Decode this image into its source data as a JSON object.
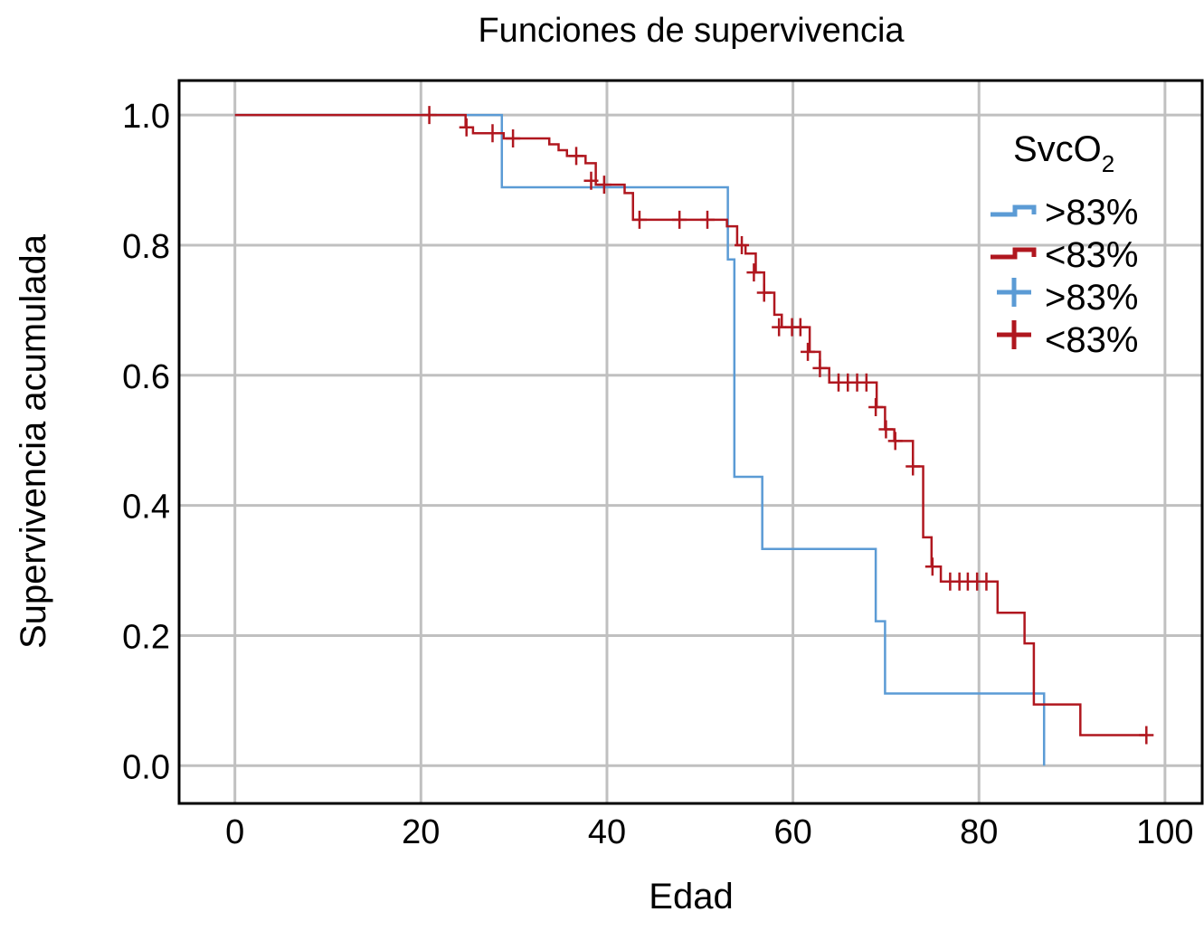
{
  "chart_data": {
    "type": "line",
    "subtype": "kaplan-meier-step",
    "title": "Funciones de supervivencia",
    "xlabel": "Edad",
    "ylabel": "Supervivencia acumulada",
    "xlim": [
      -6,
      104
    ],
    "ylim": [
      -0.058,
      1.053
    ],
    "xticks": [
      0,
      20,
      40,
      60,
      80,
      100
    ],
    "xtick_labels": [
      "0",
      "20",
      "40",
      "60",
      "80",
      "100"
    ],
    "yticks": [
      0,
      0.2,
      0.4,
      0.6,
      0.8,
      1.0
    ],
    "ytick_labels": [
      "0.0",
      "0.2",
      "0.4",
      "0.6",
      "0.8",
      "1.0"
    ],
    "grid": true,
    "legend": {
      "title": "SvcO",
      "title_sub": "2",
      "placement": "top-right",
      "entries": [
        {
          "label": ">83%",
          "kind": "line",
          "series": 0
        },
        {
          "label": "<83%",
          "kind": "line",
          "series": 1
        },
        {
          "label": ">83%",
          "kind": "censor",
          "series": 0
        },
        {
          "label": "<83%",
          "kind": "censor",
          "series": 1
        }
      ]
    },
    "series": [
      {
        "name": ">83%",
        "color": "#5b9bd5",
        "steps": [
          [
            0,
            1
          ],
          [
            28.7,
            0.889
          ],
          [
            53,
            0.778
          ],
          [
            53.7,
            0.444
          ],
          [
            56.7,
            0.333
          ],
          [
            68.9,
            0.222
          ],
          [
            69.9,
            0.111
          ],
          [
            87,
            0
          ]
        ],
        "end": 87,
        "censored": []
      },
      {
        "name": "<83%",
        "color": "#b0171f",
        "steps": [
          [
            0,
            1
          ],
          [
            24.8,
            0.981
          ],
          [
            25.6,
            0.972
          ],
          [
            28.9,
            0.964
          ],
          [
            33.8,
            0.955
          ],
          [
            34.8,
            0.946
          ],
          [
            35.7,
            0.937
          ],
          [
            37.7,
            0.926
          ],
          [
            38.8,
            0.893
          ],
          [
            41.9,
            0.88
          ],
          [
            42.8,
            0.839
          ],
          [
            52.9,
            0.829
          ],
          [
            54,
            0.8
          ],
          [
            54.9,
            0.787
          ],
          [
            56,
            0.758
          ],
          [
            56.9,
            0.727
          ],
          [
            58,
            0.693
          ],
          [
            58.8,
            0.674
          ],
          [
            61.8,
            0.636
          ],
          [
            62.9,
            0.611
          ],
          [
            63.9,
            0.589
          ],
          [
            69,
            0.551
          ],
          [
            69.9,
            0.517
          ],
          [
            70.9,
            0.499
          ],
          [
            72.9,
            0.46
          ],
          [
            74,
            0.351
          ],
          [
            74.9,
            0.306
          ],
          [
            75.9,
            0.283
          ],
          [
            82,
            0.235
          ],
          [
            84.9,
            0.188
          ],
          [
            85.9,
            0.094
          ],
          [
            90.9,
            0.047
          ]
        ],
        "end": 98,
        "censored": [
          [
            20.9,
            1
          ],
          [
            24.9,
            0.981
          ],
          [
            27.7,
            0.972
          ],
          [
            29.9,
            0.964
          ],
          [
            36.7,
            0.937
          ],
          [
            38.3,
            0.899
          ],
          [
            39.7,
            0.893
          ],
          [
            43.5,
            0.839
          ],
          [
            47.8,
            0.839
          ],
          [
            50.8,
            0.839
          ],
          [
            54.5,
            0.8
          ],
          [
            55.8,
            0.758
          ],
          [
            56.9,
            0.727
          ],
          [
            58.5,
            0.674
          ],
          [
            59.9,
            0.674
          ],
          [
            60.8,
            0.674
          ],
          [
            61.6,
            0.636
          ],
          [
            62.9,
            0.611
          ],
          [
            64.9,
            0.589
          ],
          [
            65.9,
            0.589
          ],
          [
            66.9,
            0.589
          ],
          [
            67.9,
            0.589
          ],
          [
            68.9,
            0.551
          ],
          [
            70,
            0.517
          ],
          [
            71,
            0.499
          ],
          [
            72.9,
            0.46
          ],
          [
            75,
            0.306
          ],
          [
            76.9,
            0.283
          ],
          [
            77.9,
            0.283
          ],
          [
            78.8,
            0.283
          ],
          [
            79.8,
            0.283
          ],
          [
            80.8,
            0.283
          ],
          [
            98,
            0.047
          ]
        ]
      }
    ]
  }
}
